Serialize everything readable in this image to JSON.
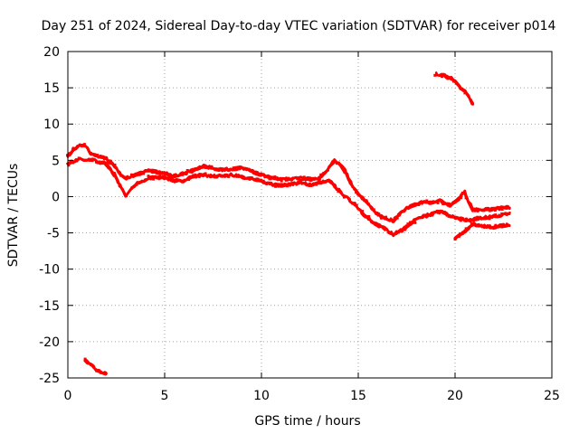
{
  "chart_data": {
    "type": "line",
    "title": "Day 251 of 2024, Sidereal Day-to-day VTEC variation (SDTVAR) for receiver p014",
    "xlabel": "GPS time / hours",
    "ylabel": "SDTVAR / TECUs",
    "xlim": [
      0,
      25
    ],
    "ylim": [
      -25,
      20
    ],
    "xticks": [
      0,
      5,
      10,
      15,
      20,
      25
    ],
    "yticks": [
      -25,
      -20,
      -15,
      -10,
      -5,
      0,
      5,
      10,
      15,
      20
    ],
    "xtick_labels": [
      "0",
      "5",
      "10",
      "15",
      "20",
      "25"
    ],
    "ytick_labels": [
      "-25",
      "-20",
      "-15",
      "-10",
      "-5",
      "0",
      "5",
      "10",
      "15",
      "20"
    ],
    "grid": true,
    "legend": "none",
    "color": "#ff0000",
    "series": [
      {
        "name": "band-upper",
        "x": [
          0,
          0.3,
          0.6,
          0.9,
          1.2,
          1.6,
          2.0,
          2.4,
          2.8,
          3.0,
          3.3,
          3.7,
          4.2,
          5.0,
          5.5,
          6.0,
          6.5,
          7.0,
          7.5,
          8.0,
          8.5,
          9.0,
          9.5,
          10.0,
          10.5,
          11.0,
          11.5,
          12.0,
          12.5,
          13.0,
          13.5,
          13.8,
          14.2,
          14.8,
          15.3,
          15.8,
          16.3,
          16.8,
          17.3,
          17.8,
          18.3,
          18.8,
          19.2,
          19.5,
          19.8,
          20.1,
          20.5,
          20.9,
          21.3,
          21.8,
          22.3,
          22.8
        ],
        "y": [
          5.5,
          6.5,
          7.0,
          7.0,
          5.8,
          5.6,
          5.2,
          4.2,
          2.8,
          2.5,
          2.8,
          3.2,
          3.6,
          3.2,
          2.8,
          3.2,
          3.6,
          4.2,
          3.9,
          3.7,
          3.8,
          4.0,
          3.5,
          3.0,
          2.6,
          2.4,
          2.4,
          2.5,
          2.4,
          2.5,
          4.0,
          5.0,
          4.0,
          1.0,
          -0.4,
          -2.0,
          -3.0,
          -3.3,
          -2.0,
          -1.2,
          -0.8,
          -0.8,
          -0.6,
          -1.0,
          -1.2,
          -0.5,
          0.6,
          -1.8,
          -1.8,
          -1.8,
          -1.6,
          -1.5
        ]
      },
      {
        "name": "band-lower",
        "x": [
          0,
          0.4,
          0.8,
          1.2,
          1.6,
          2.0,
          2.4,
          2.8,
          3.0,
          3.3,
          3.7,
          4.2,
          5.0,
          5.5,
          6.0,
          6.5,
          7.0,
          7.5,
          8.0,
          8.5,
          9.0,
          9.5,
          10.0,
          10.5,
          11.0,
          11.5,
          12.0,
          12.5,
          13.0,
          13.5,
          13.8,
          14.2,
          14.8,
          15.3,
          15.8,
          16.3,
          16.8,
          17.3,
          17.8,
          18.3,
          18.8,
          19.2,
          19.5,
          19.8,
          20.2,
          20.7,
          21.3,
          21.8,
          22.3,
          22.8
        ],
        "y": [
          4.5,
          5.0,
          5.2,
          5.1,
          4.8,
          4.5,
          3.0,
          1.0,
          0.0,
          1.2,
          2.0,
          2.6,
          2.6,
          2.2,
          2.2,
          2.8,
          3.0,
          2.8,
          2.9,
          3.0,
          2.7,
          2.5,
          2.1,
          1.7,
          1.5,
          1.7,
          1.9,
          1.6,
          1.9,
          2.2,
          1.4,
          0.3,
          -1.0,
          -2.5,
          -3.6,
          -4.3,
          -5.2,
          -4.6,
          -3.5,
          -2.8,
          -2.4,
          -2.1,
          -2.3,
          -2.7,
          -3.0,
          -3.3,
          -3.0,
          -2.8,
          -2.6,
          -2.2
        ]
      },
      {
        "name": "band-upper-tail",
        "x": [
          20.0,
          20.5,
          21.0,
          21.5,
          22.0,
          22.5,
          22.8
        ],
        "y": [
          -5.7,
          -4.8,
          -3.8,
          -4.1,
          -4.2,
          -4.0,
          -3.8
        ]
      },
      {
        "name": "segment-high",
        "x": [
          19.0,
          19.4,
          19.8,
          20.2,
          20.6,
          20.9
        ],
        "y": [
          16.9,
          16.7,
          16.3,
          15.3,
          14.2,
          12.8
        ]
      },
      {
        "name": "segment-low",
        "x": [
          0.9,
          1.2,
          1.5,
          1.8,
          2.0
        ],
        "y": [
          -22.5,
          -23.3,
          -24.0,
          -24.4,
          -24.3
        ]
      }
    ]
  }
}
